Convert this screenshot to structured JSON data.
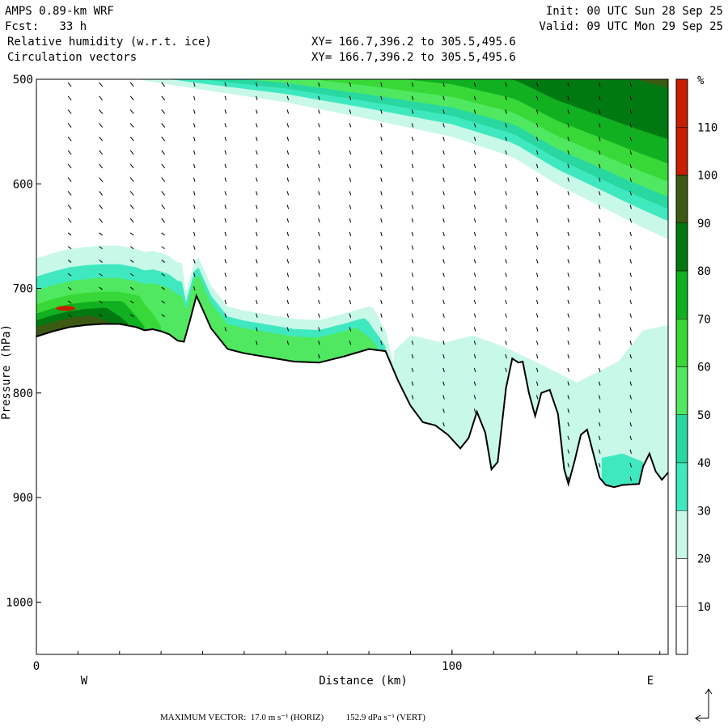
{
  "header": {
    "model": "AMPS 0.89-km WRF",
    "fcst_label": "Fcst:",
    "fcst_value": "33 h",
    "field1": "Relative humidity (w.r.t. ice)",
    "field2": "Circulation vectors",
    "init": "Init: 00 UTC Sun 28 Sep 25",
    "valid": "Valid: 09 UTC Mon 29 Sep 25",
    "xy1": "XY= 166.7,396.2 to 305.5,495.6",
    "xy2": "XY= 166.7,396.2 to 305.5,495.6"
  },
  "footer": {
    "label": "MAXIMUM VECTOR:",
    "horiz": "17.0 m s⁻¹ (HORIZ)",
    "vert": "152.9 dPa s⁻¹ (VERT)"
  },
  "chart_data": {
    "type": "heatmap",
    "title": "Relative humidity (w.r.t. ice) and circulation vectors, vertical cross-section",
    "xlabel": "Distance (km)",
    "ylabel": "Pressure (hPa)",
    "xlim": [
      0,
      152
    ],
    "ylim": [
      500,
      1050
    ],
    "x_ticks": [
      0,
      100
    ],
    "y_ticks": [
      500,
      600,
      700,
      800,
      900,
      1000
    ],
    "west_label": "W",
    "east_label": "E",
    "colorbar": {
      "unit": "%",
      "levels": [
        10,
        20,
        30,
        40,
        50,
        60,
        70,
        80,
        90,
        100,
        110
      ],
      "colors": [
        "#ffffff",
        "#ffffff",
        "#c8f8e8",
        "#40e8c0",
        "#28d8a0",
        "#50e860",
        "#38d838",
        "#10b020",
        "#007a10",
        "#3c5a14",
        "#c81e00"
      ]
    },
    "terrain_hpa": [
      [
        0,
        746
      ],
      [
        4,
        741
      ],
      [
        8,
        737
      ],
      [
        12,
        735
      ],
      [
        16,
        734
      ],
      [
        20,
        734
      ],
      [
        24,
        737
      ],
      [
        26,
        740
      ],
      [
        28,
        739
      ],
      [
        30,
        741
      ],
      [
        32,
        744
      ],
      [
        34,
        750
      ],
      [
        35.5,
        751
      ],
      [
        37,
        730
      ],
      [
        38.5,
        707
      ],
      [
        40,
        720
      ],
      [
        42,
        738
      ],
      [
        46,
        758
      ],
      [
        50,
        762
      ],
      [
        56,
        766
      ],
      [
        62,
        770
      ],
      [
        68,
        771
      ],
      [
        74,
        765
      ],
      [
        80,
        758
      ],
      [
        84,
        760
      ],
      [
        87,
        788
      ],
      [
        90,
        812
      ],
      [
        93,
        828
      ],
      [
        96,
        831
      ],
      [
        99,
        840
      ],
      [
        102,
        853
      ],
      [
        104,
        843
      ],
      [
        106,
        818
      ],
      [
        108,
        838
      ],
      [
        109.5,
        873
      ],
      [
        111,
        866
      ],
      [
        113,
        795
      ],
      [
        114.5,
        767
      ],
      [
        116,
        771
      ],
      [
        117,
        770
      ],
      [
        118.5,
        800
      ],
      [
        120,
        822
      ],
      [
        121.5,
        800
      ],
      [
        123.5,
        797
      ],
      [
        125.5,
        820
      ],
      [
        127,
        873
      ],
      [
        128,
        887
      ],
      [
        129.5,
        865
      ],
      [
        131,
        840
      ],
      [
        132.5,
        835
      ],
      [
        134,
        858
      ],
      [
        135.5,
        881
      ],
      [
        137,
        888
      ],
      [
        139,
        890
      ],
      [
        141,
        888
      ],
      [
        145,
        887
      ],
      [
        146,
        870
      ],
      [
        147.5,
        858
      ],
      [
        149,
        875
      ],
      [
        150.5,
        883
      ],
      [
        152,
        876
      ]
    ],
    "upper_moist_layer_base_hpa": [
      [
        24,
        500
      ],
      [
        40,
        510
      ],
      [
        60,
        522
      ],
      [
        80,
        538
      ],
      [
        100,
        555
      ],
      [
        115,
        575
      ],
      [
        125,
        600
      ],
      [
        135,
        620
      ],
      [
        145,
        640
      ],
      [
        152,
        653
      ]
    ],
    "moisture_maximum": {
      "value_pct": 110,
      "x_km": 7,
      "p_hpa": 719
    }
  }
}
